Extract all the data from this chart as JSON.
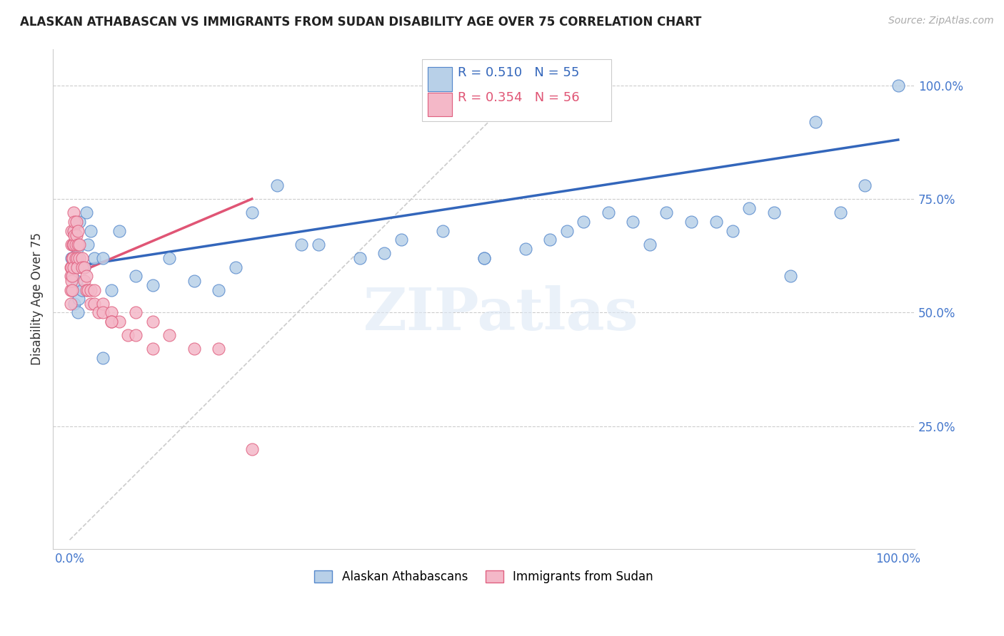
{
  "title": "ALASKAN ATHABASCAN VS IMMIGRANTS FROM SUDAN DISABILITY AGE OVER 75 CORRELATION CHART",
  "source": "Source: ZipAtlas.com",
  "ylabel": "Disability Age Over 75",
  "xlim": [
    -0.02,
    1.02
  ],
  "ylim": [
    -0.02,
    1.08
  ],
  "xtick_vals": [
    0.0,
    1.0
  ],
  "xtick_labels": [
    "0.0%",
    "100.0%"
  ],
  "ytick_vals": [
    0.25,
    0.5,
    0.75,
    1.0
  ],
  "ytick_labels": [
    "25.0%",
    "50.0%",
    "75.0%",
    "100.0%"
  ],
  "legend_labels": [
    "Alaskan Athabascans",
    "Immigrants from Sudan"
  ],
  "R_blue": "R = 0.510",
  "N_blue": "N = 55",
  "R_pink": "R = 0.354",
  "N_pink": "N = 56",
  "blue_color": "#b8d0e8",
  "pink_color": "#f4b8c8",
  "blue_edge_color": "#5588cc",
  "pink_edge_color": "#e06080",
  "blue_line_color": "#3366bb",
  "pink_line_color": "#e05575",
  "tick_color": "#4477cc",
  "watermark": "ZIPatlas",
  "blue_scatter_x": [
    0.002,
    0.003,
    0.004,
    0.005,
    0.006,
    0.007,
    0.008,
    0.009,
    0.01,
    0.011,
    0.012,
    0.015,
    0.018,
    0.02,
    0.022,
    0.025,
    0.03,
    0.04,
    0.04,
    0.05,
    0.06,
    0.08,
    0.1,
    0.12,
    0.15,
    0.18,
    0.2,
    0.22,
    0.25,
    0.28,
    0.3,
    0.35,
    0.38,
    0.4,
    0.45,
    0.5,
    0.5,
    0.55,
    0.58,
    0.6,
    0.62,
    0.65,
    0.68,
    0.7,
    0.72,
    0.75,
    0.78,
    0.8,
    0.82,
    0.85,
    0.87,
    0.9,
    0.93,
    0.96,
    1.0
  ],
  "blue_scatter_y": [
    0.62,
    0.58,
    0.55,
    0.68,
    0.52,
    0.6,
    0.57,
    0.64,
    0.5,
    0.53,
    0.7,
    0.55,
    0.6,
    0.72,
    0.65,
    0.68,
    0.62,
    0.4,
    0.62,
    0.55,
    0.68,
    0.58,
    0.56,
    0.62,
    0.57,
    0.55,
    0.6,
    0.72,
    0.78,
    0.65,
    0.65,
    0.62,
    0.63,
    0.66,
    0.68,
    0.62,
    0.62,
    0.64,
    0.66,
    0.68,
    0.7,
    0.72,
    0.7,
    0.65,
    0.72,
    0.7,
    0.7,
    0.68,
    0.73,
    0.72,
    0.58,
    0.92,
    0.72,
    0.78,
    1.0
  ],
  "pink_scatter_x": [
    0.001,
    0.001,
    0.001,
    0.001,
    0.002,
    0.002,
    0.002,
    0.002,
    0.003,
    0.003,
    0.003,
    0.004,
    0.004,
    0.005,
    0.005,
    0.005,
    0.005,
    0.006,
    0.006,
    0.007,
    0.007,
    0.008,
    0.008,
    0.009,
    0.009,
    0.01,
    0.01,
    0.012,
    0.012,
    0.015,
    0.015,
    0.018,
    0.018,
    0.02,
    0.02,
    0.022,
    0.025,
    0.025,
    0.03,
    0.03,
    0.035,
    0.04,
    0.04,
    0.05,
    0.05,
    0.06,
    0.07,
    0.08,
    0.08,
    0.1,
    0.1,
    0.12,
    0.15,
    0.18,
    0.22,
    0.05
  ],
  "pink_scatter_y": [
    0.6,
    0.58,
    0.55,
    0.52,
    0.68,
    0.65,
    0.6,
    0.57,
    0.62,
    0.58,
    0.55,
    0.65,
    0.62,
    0.72,
    0.68,
    0.65,
    0.6,
    0.7,
    0.67,
    0.65,
    0.62,
    0.7,
    0.67,
    0.62,
    0.6,
    0.68,
    0.65,
    0.65,
    0.62,
    0.62,
    0.6,
    0.6,
    0.57,
    0.58,
    0.55,
    0.55,
    0.55,
    0.52,
    0.55,
    0.52,
    0.5,
    0.52,
    0.5,
    0.5,
    0.48,
    0.48,
    0.45,
    0.5,
    0.45,
    0.48,
    0.42,
    0.45,
    0.42,
    0.42,
    0.2,
    0.48
  ],
  "blue_line_x0": 0.0,
  "blue_line_y0": 0.6,
  "blue_line_x1": 1.0,
  "blue_line_y1": 0.88,
  "pink_line_x0": 0.0,
  "pink_line_y0": 0.58,
  "pink_line_x1": 0.22,
  "pink_line_y1": 0.75,
  "diag_line_x0": 0.0,
  "diag_line_y0": 0.0,
  "diag_line_x1": 0.55,
  "diag_line_y1": 1.0
}
